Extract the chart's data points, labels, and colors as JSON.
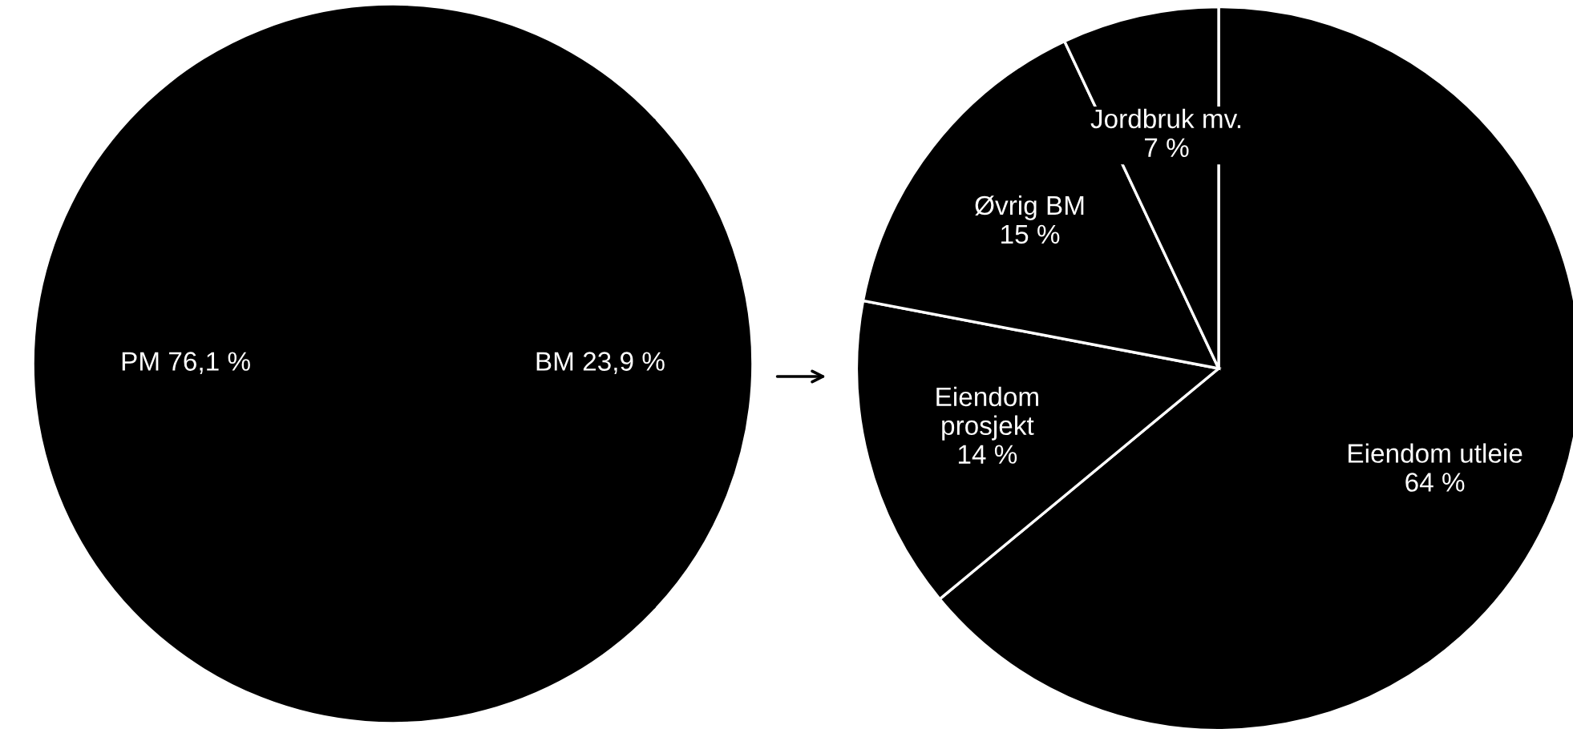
{
  "chart_data": [
    {
      "type": "pie",
      "categories": [
        "PM",
        "BM"
      ],
      "values": [
        76.1,
        23.9
      ],
      "value_labels": [
        "76,1 %",
        "23,9 %"
      ],
      "colors": [
        "#000000",
        "#000000"
      ]
    },
    {
      "type": "pie",
      "categories": [
        "Eiendom utleie",
        "Eiendom\nprosjekt",
        "Øvrig BM",
        "Jordbruk mv."
      ],
      "values": [
        64,
        14,
        15,
        7
      ],
      "value_labels": [
        "64 %",
        "14 %",
        "15 %",
        "7 %"
      ],
      "colors": [
        "#000000",
        "#000000",
        "#000000",
        "#000000"
      ]
    }
  ]
}
